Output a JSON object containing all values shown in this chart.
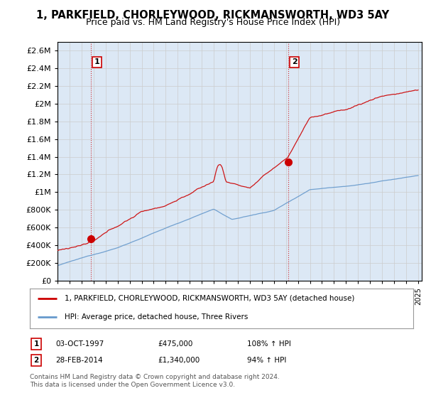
{
  "title": "1, PARKFIELD, CHORLEYWOOD, RICKMANSWORTH, WD3 5AY",
  "subtitle": "Price paid vs. HM Land Registry's House Price Index (HPI)",
  "background_color": "#ffffff",
  "grid_color": "#cccccc",
  "plot_bg_color": "#dce8f5",
  "red_line_label": "1, PARKFIELD, CHORLEYWOOD, RICKMANSWORTH, WD3 5AY (detached house)",
  "blue_line_label": "HPI: Average price, detached house, Three Rivers",
  "transaction1_date": "03-OCT-1997",
  "transaction1_price": "£475,000",
  "transaction1_hpi": "108% ↑ HPI",
  "transaction2_date": "28-FEB-2014",
  "transaction2_price": "£1,340,000",
  "transaction2_hpi": "94% ↑ HPI",
  "footer": "Contains HM Land Registry data © Crown copyright and database right 2024.\nThis data is licensed under the Open Government Licence v3.0.",
  "ylim_max": 2700000,
  "ylim_min": 0,
  "red_color": "#cc0000",
  "blue_color": "#6699cc",
  "t1": 1997.75,
  "p1": 475000,
  "t2": 2014.17,
  "p2": 1340000
}
